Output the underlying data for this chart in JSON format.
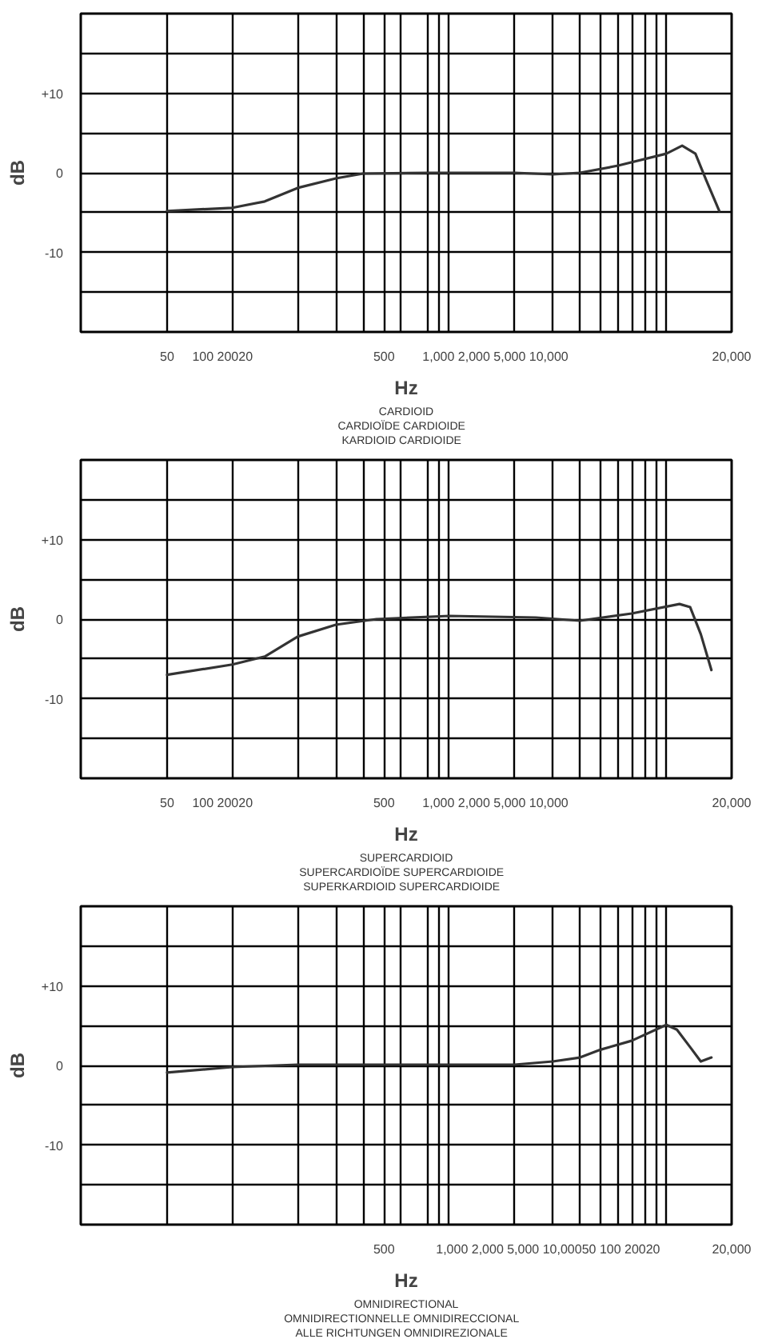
{
  "chart_data": [
    {
      "type": "line",
      "xlabel": "Hz",
      "ylabel": "dB",
      "log": "x",
      "grid": true,
      "xlim": [
        20,
        20000
      ],
      "ylim": [
        -20,
        20
      ],
      "xticks": [
        {
          "value": 50,
          "label": "50"
        },
        {
          "value": 90,
          "label": "100 20020"
        },
        {
          "value": 100,
          "label": null
        },
        {
          "value": 200,
          "label": null
        },
        {
          "value": 300,
          "label": null
        },
        {
          "value": 400,
          "label": null
        },
        {
          "value": 500,
          "label": "500"
        },
        {
          "value": 600,
          "label": null
        },
        {
          "value": 800,
          "label": null
        },
        {
          "value": 900,
          "label": null
        },
        {
          "value": 1000,
          "label": null
        },
        {
          "value": 1630,
          "label": "1,000 2,000 5,000 10,000"
        },
        {
          "value": 2000,
          "label": null
        },
        {
          "value": 3000,
          "label": null
        },
        {
          "value": 4000,
          "label": null
        },
        {
          "value": 5000,
          "label": null
        },
        {
          "value": 6000,
          "label": null
        },
        {
          "value": 7000,
          "label": null
        },
        {
          "value": 8000,
          "label": null
        },
        {
          "value": 9000,
          "label": null
        },
        {
          "value": 10000,
          "label": null
        },
        {
          "value": 20000,
          "label": "20,000"
        }
      ],
      "yticks": [
        {
          "value": -15,
          "label": null
        },
        -10,
        {
          "value": -5,
          "label": null
        },
        0,
        {
          "value": 5,
          "label": null
        },
        {
          "value": 10,
          "label": "+10"
        },
        {
          "value": 15,
          "label": null
        }
      ],
      "x": [
        50,
        100,
        141,
        200,
        300,
        400,
        811,
        2000,
        3000,
        4000,
        6000,
        10000,
        11830,
        13620,
        15250,
        17550
      ],
      "series": [
        {
          "color": "#333333",
          "values": [
            -4.8,
            -4.4,
            -3.6,
            -1.9,
            -0.7,
            -0.1,
            0,
            0,
            -0.2,
            0,
            0.9,
            2.4,
            3.4,
            2.4,
            -0.9,
            -4.8
          ]
        }
      ],
      "annotations": [
        "CARDIOID",
        "CARDIOÏDE    CARDIOIDE",
        "KARDIOID    CARDIOIDE"
      ]
    },
    {
      "type": "line",
      "xlabel": "Hz",
      "ylabel": "dB",
      "log": "x",
      "grid": true,
      "xlim": [
        20,
        20000
      ],
      "ylim": [
        -20,
        20
      ],
      "xticks": [
        {
          "value": 50,
          "label": "50"
        },
        {
          "value": 90,
          "label": "100 20020"
        },
        {
          "value": 100,
          "label": null
        },
        {
          "value": 200,
          "label": null
        },
        {
          "value": 300,
          "label": null
        },
        {
          "value": 400,
          "label": null
        },
        {
          "value": 500,
          "label": "500"
        },
        {
          "value": 600,
          "label": null
        },
        {
          "value": 800,
          "label": null
        },
        {
          "value": 900,
          "label": null
        },
        {
          "value": 1000,
          "label": null
        },
        {
          "value": 1630,
          "label": "1,000 2,000 5,000 10,000"
        },
        {
          "value": 2000,
          "label": null
        },
        {
          "value": 3000,
          "label": null
        },
        {
          "value": 4000,
          "label": null
        },
        {
          "value": 5000,
          "label": null
        },
        {
          "value": 6000,
          "label": null
        },
        {
          "value": 7000,
          "label": null
        },
        {
          "value": 8000,
          "label": null
        },
        {
          "value": 9000,
          "label": null
        },
        {
          "value": 10000,
          "label": null
        },
        {
          "value": 20000,
          "label": "20,000"
        }
      ],
      "yticks": [
        {
          "value": -15,
          "label": null
        },
        -10,
        {
          "value": -5,
          "label": null
        },
        0,
        {
          "value": 5,
          "label": null
        },
        {
          "value": 10,
          "label": "+10"
        },
        {
          "value": 15,
          "label": null
        }
      ],
      "x": [
        50,
        100,
        141,
        200,
        300,
        461,
        1000,
        2500,
        4000,
        6920,
        11500,
        12880,
        14420,
        16140
      ],
      "series": [
        {
          "color": "#333333",
          "values": [
            -7.0,
            -5.7,
            -4.7,
            -2.2,
            -0.7,
            0,
            0.4,
            0.2,
            -0.2,
            0.7,
            1.9,
            1.5,
            -1.9,
            -6.4
          ]
        }
      ],
      "annotations": [
        "SUPERCARDIOID",
        "SUPERCARDIOÏDE    SUPERCARDIOIDE",
        "SUPERKARDIOID    SUPERCARDIOIDE"
      ]
    },
    {
      "type": "line",
      "xlabel": "Hz",
      "ylabel": "dB",
      "log": "x",
      "grid": true,
      "xlim": [
        20,
        20000
      ],
      "ylim": [
        -20,
        20
      ],
      "xticks": [
        {
          "value": 50,
          "label": null
        },
        {
          "value": 100,
          "label": null
        },
        {
          "value": 200,
          "label": null
        },
        {
          "value": 300,
          "label": null
        },
        {
          "value": 400,
          "label": null
        },
        {
          "value": 600,
          "label": null
        },
        {
          "value": 800,
          "label": null
        },
        {
          "value": 900,
          "label": null
        },
        {
          "value": 500,
          "label": "500"
        },
        {
          "value": 1000,
          "label": null
        },
        {
          "value": 2000,
          "label": null
        },
        {
          "value": 2850,
          "label": "1,000 2,000 5,000 10,00050 100 20020"
        },
        {
          "value": 3000,
          "label": null
        },
        {
          "value": 4000,
          "label": null
        },
        {
          "value": 5000,
          "label": null
        },
        {
          "value": 6000,
          "label": null
        },
        {
          "value": 7000,
          "label": null
        },
        {
          "value": 8000,
          "label": null
        },
        {
          "value": 9000,
          "label": null
        },
        {
          "value": 10000,
          "label": null
        },
        {
          "value": 20000,
          "label": "20,000"
        }
      ],
      "yticks": [
        {
          "value": -15,
          "label": null
        },
        -10,
        {
          "value": -5,
          "label": null
        },
        0,
        {
          "value": 5,
          "label": null
        },
        {
          "value": 10,
          "label": "+10"
        },
        {
          "value": 15,
          "label": null
        }
      ],
      "x": [
        50,
        100,
        200,
        811,
        2000,
        3000,
        4000,
        5000,
        6920,
        10000,
        11190,
        12880,
        14420,
        16140
      ],
      "series": [
        {
          "color": "#333333",
          "values": [
            -0.9,
            -0.2,
            0.1,
            0.1,
            0.1,
            0.5,
            1.0,
            2.0,
            3.1,
            5.1,
            4.5,
            2.3,
            0.5,
            1.0
          ]
        }
      ],
      "annotations": [
        "OMNIDIRECTIONAL",
        "OMNIDIRECTIONNELLE    OMNIDIRECCIONAL",
        "ALLE RICHTUNGEN    OMNIDIREZIONALE"
      ]
    }
  ]
}
